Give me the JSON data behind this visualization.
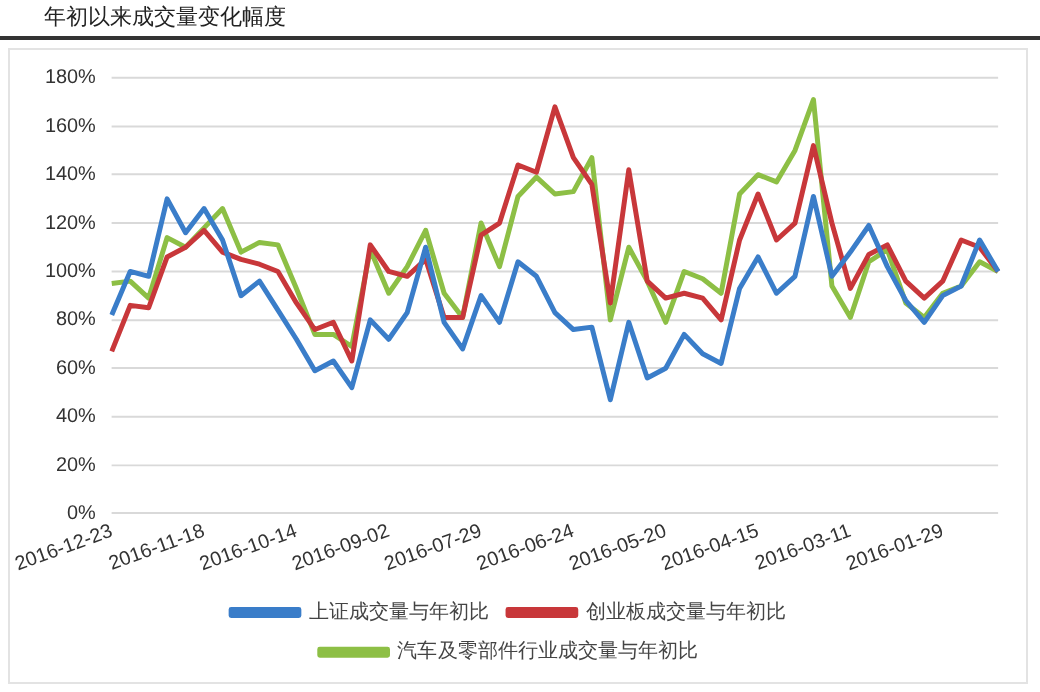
{
  "chart_data": {
    "type": "line",
    "title": "年初以来成交量变化幅度",
    "categories": [
      "2016-12-23",
      null,
      null,
      null,
      null,
      "2016-11-18",
      null,
      null,
      null,
      null,
      "2016-10-14",
      null,
      null,
      null,
      null,
      "2016-09-02",
      null,
      null,
      null,
      null,
      "2016-07-29",
      null,
      null,
      null,
      null,
      "2016-06-24",
      null,
      null,
      null,
      null,
      "2016-05-20",
      null,
      null,
      null,
      null,
      "2016-04-15",
      null,
      null,
      null,
      null,
      "2016-03-11",
      null,
      null,
      null,
      null,
      "2016-01-29",
      null,
      null,
      null
    ],
    "series": [
      {
        "name": "上证成交量与年初比",
        "color": "#3a7dc9",
        "values": [
          82,
          100,
          98,
          130,
          116,
          126,
          113,
          90,
          96,
          84,
          72,
          59,
          63,
          52,
          80,
          72,
          83,
          110,
          79,
          68,
          90,
          79,
          104,
          98,
          83,
          76,
          77,
          47,
          79,
          56,
          60,
          74,
          66,
          62,
          93,
          106,
          91,
          98,
          131,
          98,
          108,
          119,
          102,
          88,
          79,
          90,
          94,
          113,
          100
        ]
      },
      {
        "name": "创业板成交量与年初比",
        "color": "#c8373a",
        "values": [
          67,
          86,
          85,
          106,
          110,
          117,
          108,
          105,
          103,
          100,
          87,
          76,
          79,
          63,
          111,
          100,
          98,
          105,
          81,
          81,
          115,
          120,
          144,
          141,
          168,
          147,
          136,
          87,
          142,
          96,
          89,
          91,
          89,
          80,
          113,
          132,
          113,
          120,
          152,
          120,
          93,
          107,
          111,
          96,
          89,
          96,
          113,
          110,
          100
        ]
      },
      {
        "name": "汽车及零部件行业成交量与年初比",
        "color": "#8dbf45",
        "values": [
          95,
          96,
          89,
          114,
          110,
          118,
          126,
          108,
          112,
          111,
          93,
          74,
          74,
          69,
          109,
          91,
          102,
          117,
          91,
          81,
          120,
          102,
          131,
          139,
          132,
          133,
          147,
          80,
          110,
          96,
          79,
          100,
          97,
          91,
          132,
          140,
          137,
          150,
          171,
          94,
          81,
          104,
          109,
          87,
          81,
          91,
          94,
          104,
          100
        ]
      }
    ],
    "ylim": [
      0,
      180
    ],
    "yticks": [
      {
        "value": 0,
        "label": "0%"
      },
      {
        "value": 20,
        "label": "20%"
      },
      {
        "value": 40,
        "label": "40%"
      },
      {
        "value": 60,
        "label": "60%"
      },
      {
        "value": 80,
        "label": "80%"
      },
      {
        "value": 100,
        "label": "100%"
      },
      {
        "value": 120,
        "label": "120%"
      },
      {
        "value": 140,
        "label": "140%"
      },
      {
        "value": 160,
        "label": "160%"
      },
      {
        "value": 180,
        "label": "180%"
      }
    ],
    "grid": "y",
    "legend": "bottom",
    "marker": "none",
    "line_style": "solid"
  }
}
